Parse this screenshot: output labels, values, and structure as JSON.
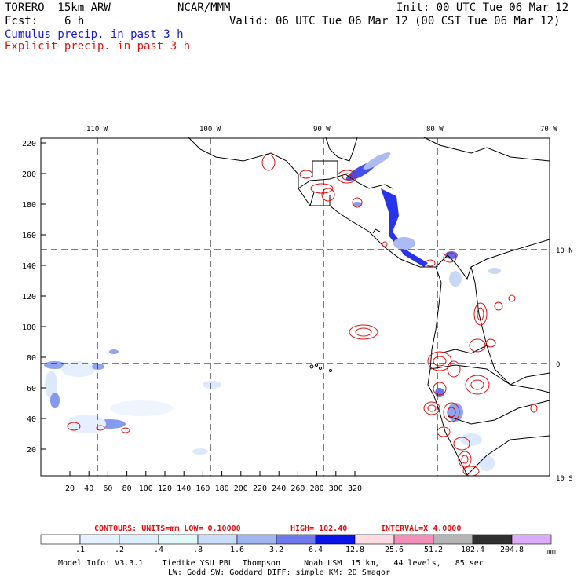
{
  "header": {
    "model": "TORERO  15km ARW",
    "org": "NCAR/MMM",
    "init": "Init: 00 UTC Tue 06 Mar 12",
    "fcst_label": "Fcst:",
    "fcst_value": "6 h",
    "valid": "Valid: 06 UTC Tue 06 Mar 12 (00 CST Tue 06 Mar 12)",
    "cumulus": "Cumulus precip. in past 3 h",
    "explicit": "Explicit precip. in past 3 h"
  },
  "map": {
    "top_lon_labels": [
      "110 W",
      "100 W",
      "90 W",
      "80 W",
      "70 W"
    ],
    "right_lat_labels": [
      "10 N",
      "0",
      "10 S"
    ],
    "left_y_ticks": [
      "220",
      "200",
      "180",
      "160",
      "140",
      "120",
      "100",
      "80",
      "60",
      "40",
      "20"
    ],
    "bottom_x_ticks": [
      "20",
      "40",
      "60",
      "80",
      "100",
      "120",
      "140",
      "160",
      "180",
      "200",
      "220",
      "240",
      "260",
      "280",
      "300",
      "320"
    ]
  },
  "contours_info": {
    "contours": "CONTOURS:  UNITS=mm  LOW= 0.10000",
    "high": "HIGH=  102.40",
    "interval": "INTERVAL=X  4.0000"
  },
  "legend": {
    "labels": [
      ".1",
      ".2",
      ".4",
      ".8",
      "1.6",
      "3.2",
      "6.4",
      "12.8",
      "25.6",
      "51.2",
      "102.4",
      "204.8"
    ],
    "unit": "mm",
    "colors": [
      "#ffffff",
      "#e6f2ff",
      "#ddeeff",
      "#e0f8f8",
      "#c8dcf8",
      "#a0b4f0",
      "#7078ee",
      "#0a14e8",
      "#ffdce2",
      "#f090b8",
      "#b4b4b4",
      "#303030",
      "#dcacf8"
    ]
  },
  "footer": {
    "line1": "Model Info: V3.3.1    Tiedtke YSU PBL  Thompson     Noah LSM  15 km,   44 levels,   85 sec",
    "line2": "LW: Godd SW: Goddard DIFF: simple KM: 2D Smagor"
  }
}
